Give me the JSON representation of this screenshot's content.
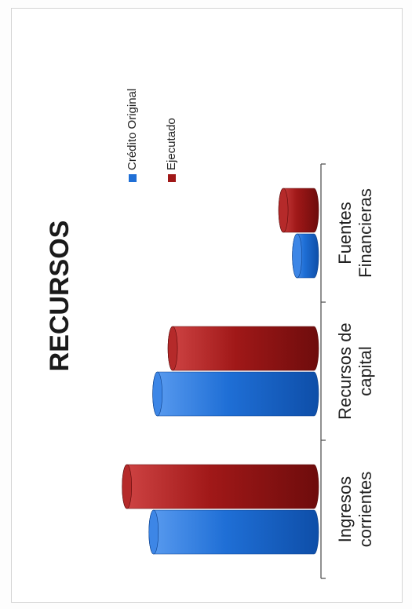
{
  "chart_data": {
    "type": "bar",
    "title": "RECURSOS",
    "categories": [
      "Ingresos\ncorrientes",
      "Recursos de\ncapital",
      "Fuentes\nFinancieras"
    ],
    "series": [
      {
        "name": "Crédito Original",
        "color": "#1f6fd6",
        "values": [
          210,
          205,
          22
        ]
      },
      {
        "name": "Ejecutado",
        "color": "#a01818",
        "values": [
          245,
          185,
          40
        ]
      }
    ],
    "xlabel": "",
    "ylabel": "",
    "ylim": [
      0,
      255
    ],
    "grid": false,
    "legend_position": "top-right",
    "orientation": "rotated-90"
  }
}
